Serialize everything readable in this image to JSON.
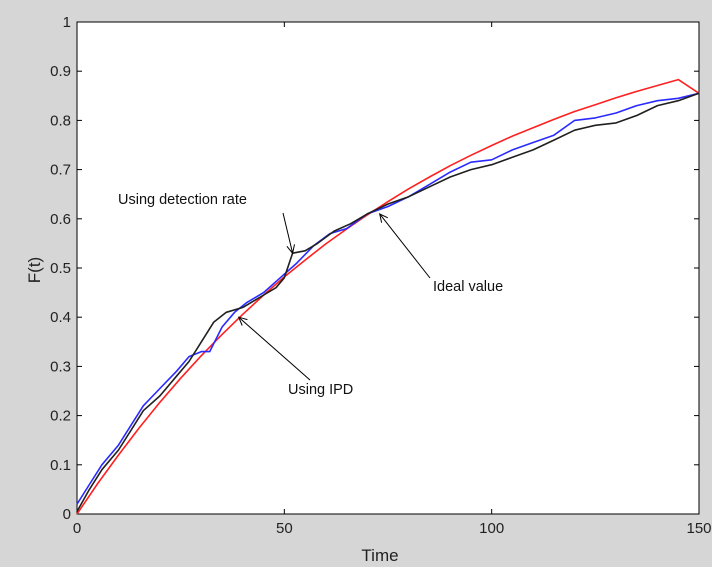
{
  "chart_data": {
    "type": "line",
    "title": "",
    "xlabel": "Time",
    "ylabel": "F(t)",
    "xlim": [
      0,
      150
    ],
    "ylim": [
      0,
      1
    ],
    "grid": false,
    "x_ticks": [
      0,
      50,
      100,
      150
    ],
    "y_ticks": [
      0,
      0.1,
      0.2,
      0.3,
      0.4,
      0.5,
      0.6,
      0.7,
      0.8,
      0.9,
      1
    ],
    "y_tick_labels": [
      "0",
      "0.1",
      "0.2",
      "0.3",
      "0.4",
      "0.5",
      "0.6",
      "0.7",
      "0.8",
      "0.9",
      "1"
    ],
    "series": [
      {
        "name": "Ideal value",
        "color": "#ff2020",
        "x": [
          0,
          5,
          10,
          15,
          20,
          25,
          30,
          35,
          40,
          45,
          50,
          55,
          60,
          65,
          70,
          75,
          80,
          85,
          90,
          95,
          100,
          105,
          110,
          115,
          120,
          125,
          130,
          135,
          140,
          145,
          150
        ],
        "y": [
          0,
          0.062,
          0.12,
          0.175,
          0.227,
          0.276,
          0.322,
          0.365,
          0.406,
          0.445,
          0.482,
          0.516,
          0.549,
          0.579,
          0.608,
          0.635,
          0.661,
          0.685,
          0.708,
          0.729,
          0.749,
          0.768,
          0.785,
          0.802,
          0.818,
          0.832,
          0.846,
          0.859,
          0.871,
          0.883,
          0.855
        ]
      },
      {
        "name": "Using IPD",
        "color": "#2a2aff",
        "x": [
          0,
          3,
          6,
          10,
          13,
          16,
          20,
          24,
          27,
          30,
          32,
          35,
          38,
          41,
          45,
          49,
          53,
          57,
          61,
          65,
          70,
          75,
          80,
          85,
          90,
          95,
          100,
          105,
          110,
          115,
          120,
          125,
          130,
          135,
          140,
          145,
          150
        ],
        "y": [
          0.02,
          0.06,
          0.1,
          0.14,
          0.18,
          0.22,
          0.255,
          0.29,
          0.32,
          0.33,
          0.33,
          0.38,
          0.41,
          0.43,
          0.45,
          0.48,
          0.51,
          0.545,
          0.57,
          0.58,
          0.61,
          0.625,
          0.645,
          0.67,
          0.695,
          0.715,
          0.72,
          0.74,
          0.755,
          0.77,
          0.8,
          0.805,
          0.815,
          0.83,
          0.84,
          0.845,
          0.855
        ]
      },
      {
        "name": "Using detection rate",
        "color": "#202020",
        "x": [
          0,
          3,
          6,
          10,
          13,
          16,
          20,
          24,
          27,
          30,
          33,
          36,
          40,
          44,
          48,
          50,
          52,
          55,
          58,
          62,
          66,
          70,
          75,
          80,
          85,
          90,
          95,
          100,
          105,
          110,
          115,
          120,
          125,
          130,
          135,
          140,
          145,
          150
        ],
        "y": [
          0.005,
          0.05,
          0.09,
          0.13,
          0.17,
          0.21,
          0.24,
          0.28,
          0.31,
          0.35,
          0.39,
          0.41,
          0.42,
          0.44,
          0.46,
          0.48,
          0.53,
          0.535,
          0.55,
          0.575,
          0.59,
          0.61,
          0.63,
          0.645,
          0.665,
          0.685,
          0.7,
          0.71,
          0.725,
          0.74,
          0.76,
          0.78,
          0.79,
          0.795,
          0.81,
          0.83,
          0.84,
          0.855
        ]
      }
    ],
    "annotations": [
      {
        "text": "Using detection rate",
        "arrow_to": [
          52,
          0.53
        ]
      },
      {
        "text": "Ideal value",
        "arrow_to": [
          73,
          0.61
        ]
      },
      {
        "text": "Using IPD",
        "arrow_to": [
          39,
          0.4
        ]
      }
    ]
  }
}
